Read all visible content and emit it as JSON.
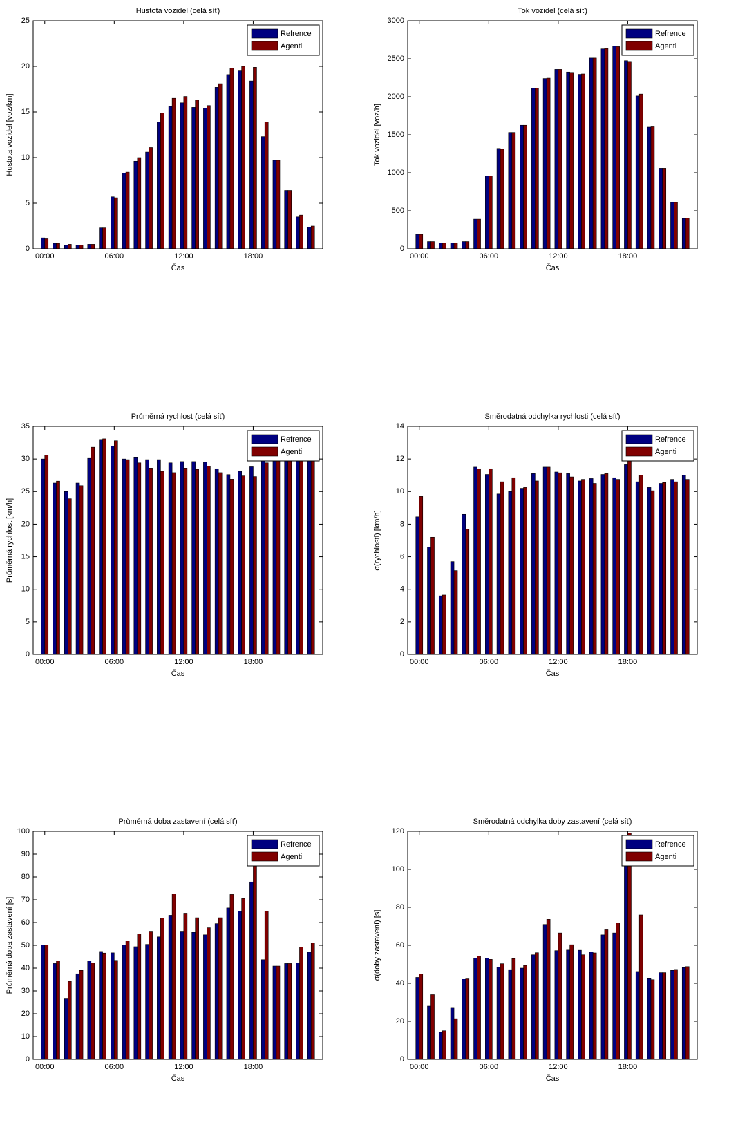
{
  "chart_data": [
    {
      "type": "bar",
      "title": "Hustota vozidel (celá síť)",
      "xlabel": "Čas",
      "ylabel": "Hustota vozidel [voz/km]",
      "categories": [
        "00:00",
        null,
        null,
        null,
        null,
        null,
        "06:00",
        null,
        null,
        null,
        null,
        null,
        "12:00",
        null,
        null,
        null,
        null,
        null,
        "18:00",
        null,
        null,
        null,
        null,
        null
      ],
      "series": [
        {
          "name": "Refrence",
          "color": "#000080",
          "values": [
            1.2,
            0.6,
            0.4,
            0.4,
            0.5,
            2.3,
            5.7,
            8.3,
            9.6,
            10.6,
            13.9,
            15.6,
            16.0,
            15.5,
            15.4,
            17.7,
            19.1,
            19.5,
            18.4,
            12.3,
            9.7,
            6.4,
            3.5,
            2.4
          ]
        },
        {
          "name": "Agenti",
          "color": "#800000",
          "values": [
            1.1,
            0.6,
            0.5,
            0.4,
            0.5,
            2.3,
            5.6,
            8.4,
            10.0,
            11.1,
            14.9,
            16.5,
            16.7,
            16.3,
            15.7,
            18.1,
            19.8,
            20.0,
            19.9,
            13.9,
            9.7,
            6.4,
            3.7,
            2.5
          ]
        }
      ],
      "ylim": [
        0,
        25
      ],
      "yticks": [
        0,
        5,
        10,
        15,
        20,
        25
      ],
      "legend": "upper right"
    },
    {
      "type": "bar",
      "title": "Tok vozidel (celá síť)",
      "xlabel": "Čas",
      "ylabel": "Tok vozidel [voz/h]",
      "categories": [
        "00:00",
        null,
        null,
        null,
        null,
        null,
        "06:00",
        null,
        null,
        null,
        null,
        null,
        "12:00",
        null,
        null,
        null,
        null,
        null,
        "18:00",
        null,
        null,
        null,
        null,
        null
      ],
      "series": [
        {
          "name": "Refrence",
          "color": "#000080",
          "values": [
            190,
            95,
            75,
            75,
            95,
            390,
            960,
            1320,
            1530,
            1625,
            2115,
            2240,
            2360,
            2325,
            2295,
            2510,
            2630,
            2670,
            2475,
            2010,
            1600,
            1060,
            610,
            400
          ]
        },
        {
          "name": "Agenti",
          "color": "#800000",
          "values": [
            190,
            95,
            75,
            75,
            95,
            390,
            960,
            1310,
            1530,
            1625,
            2115,
            2245,
            2360,
            2320,
            2300,
            2510,
            2635,
            2660,
            2465,
            2035,
            1605,
            1060,
            610,
            405
          ]
        }
      ],
      "ylim": [
        0,
        3000
      ],
      "yticks": [
        0,
        500,
        1000,
        1500,
        2000,
        2500,
        3000
      ],
      "legend": "upper right"
    },
    {
      "type": "bar",
      "title": "Průměrná rychlost (celá síť)",
      "xlabel": "Čas",
      "ylabel": "Průměrná rychlost [km/h]",
      "categories": [
        "00:00",
        null,
        null,
        null,
        null,
        null,
        "06:00",
        null,
        null,
        null,
        null,
        null,
        "12:00",
        null,
        null,
        null,
        null,
        null,
        "18:00",
        null,
        null,
        null,
        null,
        null
      ],
      "series": [
        {
          "name": "Refrence",
          "color": "#000080",
          "values": [
            30.0,
            26.3,
            25.0,
            26.3,
            30.1,
            33.0,
            32.0,
            30.0,
            30.2,
            29.9,
            29.9,
            29.4,
            29.6,
            29.6,
            29.5,
            28.5,
            27.6,
            28.1,
            28.8,
            31.0,
            30.5,
            30.5,
            30.5,
            30.2
          ]
        },
        {
          "name": "Agenti",
          "color": "#800000",
          "values": [
            30.6,
            26.6,
            23.9,
            25.9,
            31.8,
            33.1,
            32.8,
            29.9,
            29.4,
            28.6,
            28.1,
            27.9,
            28.6,
            28.4,
            28.9,
            27.9,
            26.9,
            27.4,
            27.3,
            29.4,
            30.8,
            30.5,
            30.2,
            30.3
          ]
        }
      ],
      "ylim": [
        0,
        35
      ],
      "yticks": [
        0,
        5,
        10,
        15,
        20,
        25,
        30,
        35
      ],
      "legend": "upper right"
    },
    {
      "type": "bar",
      "title": "Směrodatná odchylka rychlosti (celá síť)",
      "xlabel": "Čas",
      "ylabel": "σ(rychlosti) [km/h]",
      "categories": [
        "00:00",
        null,
        null,
        null,
        null,
        null,
        "06:00",
        null,
        null,
        null,
        null,
        null,
        "12:00",
        null,
        null,
        null,
        null,
        null,
        "18:00",
        null,
        null,
        null,
        null,
        null
      ],
      "series": [
        {
          "name": "Refrence",
          "color": "#000080",
          "values": [
            8.45,
            6.6,
            3.6,
            5.7,
            8.6,
            11.5,
            11.05,
            9.85,
            10.0,
            10.2,
            11.1,
            11.5,
            11.2,
            11.1,
            10.65,
            10.8,
            11.05,
            10.85,
            11.65,
            10.6,
            10.25,
            10.5,
            10.75,
            11.0
          ]
        },
        {
          "name": "Agenti",
          "color": "#800000",
          "values": [
            9.7,
            7.2,
            3.65,
            5.15,
            7.7,
            11.4,
            11.4,
            10.6,
            10.85,
            10.25,
            10.65,
            11.5,
            11.15,
            10.9,
            10.75,
            10.5,
            11.1,
            10.75,
            12.2,
            11.0,
            10.05,
            10.55,
            10.6,
            10.75
          ]
        }
      ],
      "ylim": [
        0,
        14
      ],
      "yticks": [
        0,
        2,
        4,
        6,
        8,
        10,
        12,
        14
      ],
      "legend": "upper right"
    },
    {
      "type": "bar",
      "title": "Průměrná doba zastavení (celá síť)",
      "xlabel": "Čas",
      "ylabel": "Průměrná doba zastavení [s]",
      "categories": [
        "00:00",
        null,
        null,
        null,
        null,
        null,
        "06:00",
        null,
        null,
        null,
        null,
        null,
        "12:00",
        null,
        null,
        null,
        null,
        null,
        "18:00",
        null,
        null,
        null,
        null,
        null
      ],
      "series": [
        {
          "name": "Refrence",
          "color": "#000080",
          "values": [
            50.2,
            42.0,
            26.8,
            37.5,
            43.2,
            47.3,
            46.7,
            50.2,
            49.4,
            50.4,
            53.7,
            63.2,
            56.2,
            55.7,
            54.6,
            59.5,
            66.4,
            65.0,
            77.8,
            43.7,
            40.9,
            42.0,
            42.2,
            47.0
          ]
        },
        {
          "name": "Agenti",
          "color": "#800000",
          "values": [
            50.2,
            43.2,
            34.2,
            39.0,
            42.2,
            46.6,
            43.4,
            51.9,
            55.0,
            56.2,
            62.0,
            72.6,
            64.1,
            62.1,
            57.7,
            62.1,
            72.3,
            70.5,
            86.0,
            65.0,
            40.9,
            42.0,
            49.3,
            51.1
          ]
        }
      ],
      "ylim": [
        0,
        100
      ],
      "yticks": [
        0,
        10,
        20,
        30,
        40,
        50,
        60,
        70,
        80,
        90,
        100
      ],
      "legend": "upper right"
    },
    {
      "type": "bar",
      "title": "Směrodatná odchylka doby zastavení (celá síť)",
      "xlabel": "Čas",
      "ylabel": "σ(doby zastavení) [s]",
      "categories": [
        "00:00",
        null,
        null,
        null,
        null,
        null,
        "06:00",
        null,
        null,
        null,
        null,
        null,
        "12:00",
        null,
        null,
        null,
        null,
        null,
        "18:00",
        null,
        null,
        null,
        null,
        null
      ],
      "series": [
        {
          "name": "Refrence",
          "color": "#000080",
          "values": [
            43.1,
            28.0,
            14.2,
            27.3,
            42.3,
            53.2,
            53.3,
            48.6,
            47.2,
            48.0,
            55.0,
            71.0,
            57.2,
            57.5,
            57.4,
            56.6,
            65.5,
            66.5,
            110,
            46.2,
            42.8,
            45.6,
            46.8,
            48.3
          ]
        },
        {
          "name": "Agenti",
          "color": "#800000",
          "values": [
            44.9,
            34.0,
            15.0,
            21.4,
            42.7,
            54.4,
            52.6,
            50.3,
            53.0,
            49.4,
            56.1,
            73.7,
            66.5,
            60.3,
            55.0,
            56.0,
            68.2,
            71.8,
            119,
            76.0,
            41.9,
            45.6,
            47.3,
            48.8
          ]
        }
      ],
      "ylim": [
        0,
        120
      ],
      "yticks": [
        0,
        20,
        40,
        60,
        80,
        100,
        120
      ],
      "legend": "upper right"
    }
  ]
}
